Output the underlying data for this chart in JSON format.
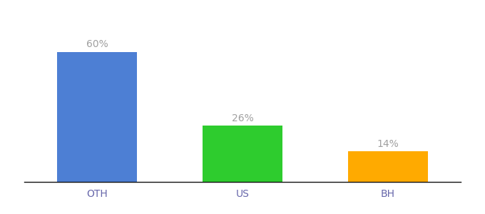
{
  "categories": [
    "OTH",
    "US",
    "BH"
  ],
  "values": [
    60,
    26,
    14
  ],
  "bar_colors": [
    "#4d7fd4",
    "#2ecc2e",
    "#ffaa00"
  ],
  "label_texts": [
    "60%",
    "26%",
    "14%"
  ],
  "background_color": "#ffffff",
  "label_color": "#a0a0a0",
  "label_fontsize": 10,
  "tick_fontsize": 10,
  "tick_color": "#6666aa",
  "bar_width": 0.55,
  "ylim": [
    0,
    72
  ],
  "xlim": [
    -0.5,
    2.5
  ]
}
